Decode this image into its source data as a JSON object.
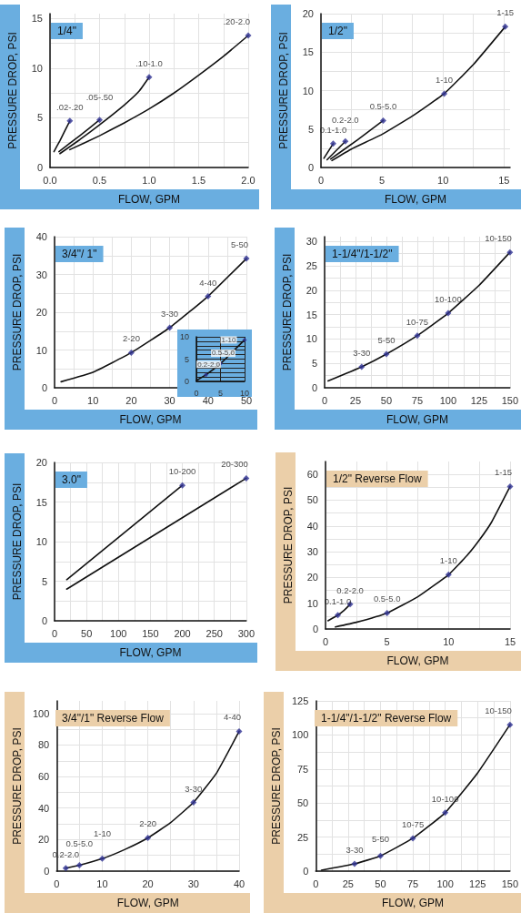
{
  "chart_data": [
    {
      "type": "line",
      "title": "1/4\"",
      "xlabel": "FLOW, GPM",
      "ylabel": "PRESSURE DROP, PSI",
      "xlim": [
        0,
        2
      ],
      "ylim": [
        0,
        15.5
      ],
      "grid": true,
      "xticks": [
        {
          "value": 0,
          "label": "0.0"
        },
        {
          "value": 0.25,
          "label": null
        },
        {
          "value": 0.5,
          "label": "0.5"
        },
        {
          "value": 0.75,
          "label": null
        },
        {
          "value": 1,
          "label": "1.0"
        },
        {
          "value": 1.25,
          "label": null
        },
        {
          "value": 1.5,
          "label": "1.5"
        },
        {
          "value": 1.75,
          "label": null
        },
        {
          "value": 2,
          "label": "2.0"
        }
      ],
      "yticks": [
        0,
        {
          "value": 2.5,
          "label": null
        },
        5,
        {
          "value": 7.5,
          "label": null
        },
        10,
        {
          "value": 12.5,
          "label": null
        },
        15
      ],
      "series": [
        {
          "type": "line",
          "color": "#111111",
          "marker": "none",
          "x": [
            0.04,
            0.1,
            0.15,
            0.2
          ],
          "values": [
            1.6,
            2.7,
            3.7,
            4.7
          ]
        },
        {
          "type": "line",
          "color": "#111111",
          "marker": "none",
          "x": [
            0.09,
            0.3,
            0.5
          ],
          "values": [
            1.6,
            3.2,
            4.8
          ]
        },
        {
          "type": "line",
          "color": "#111111",
          "marker": "none",
          "x": [
            0.1,
            0.3,
            0.5,
            0.75,
            0.9,
            1
          ],
          "values": [
            1.4,
            2.8,
            4.3,
            6.3,
            7.7,
            9.1
          ]
        },
        {
          "type": "line",
          "color": "#111111",
          "marker": "none",
          "x": [
            0.2,
            0.5,
            0.75,
            1,
            1.25,
            1.5,
            1.75,
            2
          ],
          "values": [
            1.8,
            3.2,
            4.5,
            5.9,
            7.5,
            9.3,
            11.2,
            13.3
          ]
        },
        {
          "type": "scatter",
          "color": "#2e3192",
          "marker": "diamond",
          "x": [
            0.2,
            0.5,
            1,
            2
          ],
          "values": [
            4.7,
            4.8,
            9.1,
            13.3
          ],
          "value_labels": [
            ".02-.20",
            ".05-.50",
            ".10-1.0",
            ".20-2.0"
          ]
        }
      ]
    },
    {
      "type": "line",
      "title": "1/2\"",
      "xlabel": "FLOW, GPM",
      "ylabel": "PRESSURE DROP, PSI",
      "xlim": [
        0,
        15.5
      ],
      "ylim": [
        0,
        20
      ],
      "grid": true,
      "xticks": [
        0,
        {
          "value": 2.5,
          "label": null
        },
        5,
        {
          "value": 7.5,
          "label": null
        },
        10,
        {
          "value": 12.5,
          "label": null
        },
        15
      ],
      "yticks": [
        0,
        {
          "value": 2.5,
          "label": null
        },
        5,
        {
          "value": 7.5,
          "label": null
        },
        10,
        {
          "value": 12.5,
          "label": null
        },
        15,
        {
          "value": 17.5,
          "label": null
        },
        20
      ],
      "series": [
        {
          "type": "line",
          "color": "#111111",
          "marker": "none",
          "x": [
            0.24,
            1
          ],
          "values": [
            1.2,
            3.1
          ]
        },
        {
          "type": "line",
          "color": "#111111",
          "marker": "none",
          "x": [
            0.5,
            2
          ],
          "values": [
            1,
            3.4
          ]
        },
        {
          "type": "line",
          "color": "#111111",
          "marker": "none",
          "x": [
            0.8,
            3,
            5.1
          ],
          "values": [
            1.1,
            3.6,
            6.1
          ]
        },
        {
          "type": "line",
          "color": "#111111",
          "marker": "none",
          "x": [
            0.9,
            2.5,
            5,
            7.5,
            10.1,
            12.5,
            15.1
          ],
          "values": [
            0.9,
            2.4,
            4.3,
            6.7,
            9.6,
            13.4,
            18.3
          ]
        },
        {
          "type": "scatter",
          "color": "#2e3192",
          "marker": "diamond",
          "x": [
            1,
            2,
            5.1,
            10.1,
            15.1
          ],
          "values": [
            3.1,
            3.4,
            6.1,
            9.6,
            18.3
          ],
          "value_labels": [
            "0.1-1.0",
            "0.2-2.0",
            "0.5-5.0",
            "1-10",
            "1-15"
          ]
        }
      ]
    },
    {
      "type": "line",
      "title": "3/4\"/ 1\"",
      "xlabel": "FLOW, GPM",
      "ylabel": "PRESSURE DROP, PSI",
      "xlim": [
        0,
        50
      ],
      "ylim": [
        0,
        40
      ],
      "grid": true,
      "xticks": [
        0,
        {
          "value": 5,
          "label": null
        },
        10,
        {
          "value": 15,
          "label": null
        },
        20,
        {
          "value": 25,
          "label": null
        },
        30,
        {
          "value": 35,
          "label": null
        },
        40,
        {
          "value": 45,
          "label": null
        },
        50
      ],
      "yticks": [
        0,
        {
          "value": 5,
          "label": null
        },
        10,
        {
          "value": 15,
          "label": null
        },
        20,
        {
          "value": 25,
          "label": null
        },
        30,
        {
          "value": 35,
          "label": null
        },
        40
      ],
      "series": [
        {
          "type": "line",
          "color": "#111111",
          "marker": "none",
          "x": [
            1.7,
            10,
            20,
            30,
            40,
            50
          ],
          "values": [
            1.6,
            4.1,
            9.3,
            15.9,
            24.2,
            34.2
          ]
        },
        {
          "type": "scatter",
          "color": "#2e3192",
          "marker": "diamond",
          "x": [
            20,
            30,
            40,
            50
          ],
          "values": [
            9.3,
            15.9,
            24.2,
            34.2
          ],
          "value_labels": [
            "2-20",
            "3-30",
            "4-40",
            "5-50"
          ]
        }
      ]
    },
    {
      "type": "line",
      "xlim": [
        0,
        10
      ],
      "ylim": [
        0,
        10
      ],
      "grid": true,
      "xticks": [
        0,
        5,
        10
      ],
      "yticks": [
        0,
        {
          "value": 1,
          "label": null
        },
        {
          "value": 2,
          "label": null
        },
        {
          "value": 3,
          "label": null
        },
        {
          "value": 4,
          "label": null
        },
        5,
        {
          "value": 6,
          "label": null
        },
        {
          "value": 7,
          "label": null
        },
        {
          "value": 8,
          "label": null
        },
        {
          "value": 9,
          "label": null
        },
        10
      ],
      "series": [
        {
          "type": "line",
          "color": "#111111",
          "marker": "none",
          "x": [
            0,
            2,
            5,
            10
          ],
          "values": [
            0.2,
            1.5,
            4,
            9.3
          ]
        },
        {
          "type": "scatter",
          "color": "#2e3192",
          "marker": "diamond",
          "x": [
            2,
            5,
            10
          ],
          "values": [
            1.5,
            4,
            9.3
          ],
          "value_labels": [
            "0.2-2.0",
            "0.5-5.0",
            "1-10"
          ]
        }
      ]
    },
    {
      "type": "line",
      "title": "1-1/4\"/1-1/2\"",
      "xlabel": "FLOW, GPM",
      "ylabel": "PRESSURE DROP, PSI",
      "xlim": [
        0,
        150
      ],
      "ylim": [
        0,
        31
      ],
      "grid": true,
      "xticks": [
        0,
        {
          "value": 12.5,
          "label": null
        },
        25,
        {
          "value": 37.5,
          "label": null
        },
        50,
        {
          "value": 62.5,
          "label": null
        },
        75,
        {
          "value": 87.5,
          "label": null
        },
        100,
        {
          "value": 112.5,
          "label": null
        },
        125,
        {
          "value": 137.5,
          "label": null
        },
        150
      ],
      "yticks": [
        0,
        {
          "value": 2.5,
          "label": null
        },
        5,
        {
          "value": 7.5,
          "label": null
        },
        10,
        {
          "value": 12.5,
          "label": null
        },
        15,
        {
          "value": 17.5,
          "label": null
        },
        20,
        {
          "value": 22.5,
          "label": null
        },
        25,
        {
          "value": 27.5,
          "label": null
        },
        30
      ],
      "series": [
        {
          "type": "line",
          "color": "#111111",
          "marker": "none",
          "x": [
            2.8,
            30,
            50,
            75,
            100,
            125,
            150
          ],
          "values": [
            1.4,
            4.3,
            6.9,
            10.7,
            15.3,
            21,
            27.8
          ]
        },
        {
          "type": "scatter",
          "color": "#2e3192",
          "marker": "diamond",
          "x": [
            30,
            50,
            75,
            100,
            150
          ],
          "values": [
            4.3,
            6.9,
            10.7,
            15.3,
            27.8
          ],
          "value_labels": [
            "3-30",
            "5-50",
            "10-75",
            "10-100",
            "10-150"
          ]
        }
      ]
    },
    {
      "type": "line",
      "title": "3.0\"",
      "xlabel": "FLOW, GPM",
      "ylabel": "PRESSURE DROP, PSI",
      "xlim": [
        0,
        300
      ],
      "ylim": [
        0,
        20
      ],
      "grid": true,
      "xticks": [
        0,
        {
          "value": 25,
          "label": null
        },
        50,
        {
          "value": 75,
          "label": null
        },
        100,
        {
          "value": 125,
          "label": null
        },
        150,
        {
          "value": 175,
          "label": null
        },
        200,
        {
          "value": 225,
          "label": null
        },
        250,
        {
          "value": 275,
          "label": null
        },
        300
      ],
      "yticks": [
        0,
        {
          "value": 2.5,
          "label": null
        },
        5,
        {
          "value": 7.5,
          "label": null
        },
        10,
        {
          "value": 12.5,
          "label": null
        },
        15,
        {
          "value": 17.5,
          "label": null
        },
        20
      ],
      "series": [
        {
          "type": "line",
          "color": "#111111",
          "marker": "none",
          "x": [
            19,
            200
          ],
          "values": [
            5.2,
            17.1
          ]
        },
        {
          "type": "line",
          "color": "#111111",
          "marker": "none",
          "x": [
            19,
            300
          ],
          "values": [
            4,
            18
          ]
        },
        {
          "type": "scatter",
          "color": "#2e3192",
          "marker": "diamond",
          "x": [
            200,
            300
          ],
          "values": [
            17.1,
            18
          ],
          "value_labels": [
            "10-200",
            "20-300"
          ]
        }
      ]
    },
    {
      "type": "line",
      "title": "1/2\" Reverse Flow",
      "xlabel": "FLOW, GPM",
      "ylabel": "PRESSURE DROP, PSI",
      "xlim": [
        0,
        15
      ],
      "ylim": [
        0,
        65
      ],
      "grid": true,
      "xticks": [
        0,
        {
          "value": 2.5,
          "label": null
        },
        5,
        {
          "value": 7.5,
          "label": null
        },
        10,
        {
          "value": 12.5,
          "label": null
        },
        15
      ],
      "yticks": [
        0,
        {
          "value": 5,
          "label": null
        },
        10,
        {
          "value": 15,
          "label": null
        },
        20,
        {
          "value": 25,
          "label": null
        },
        30,
        {
          "value": 35,
          "label": null
        },
        40,
        {
          "value": 45,
          "label": null
        },
        50,
        {
          "value": 55,
          "label": null
        },
        60
      ],
      "series": [
        {
          "type": "line",
          "color": "#111111",
          "marker": "none",
          "x": [
            0.2,
            1,
            1.5,
            2
          ],
          "values": [
            3.2,
            5.4,
            7.2,
            9.6
          ]
        },
        {
          "type": "line",
          "color": "#111111",
          "marker": "none",
          "x": [
            0.8,
            2.5,
            5,
            7.5,
            10,
            11.5,
            12.5,
            13.5,
            15
          ],
          "values": [
            0.8,
            2.6,
            6.2,
            12.5,
            21.1,
            28.5,
            34.5,
            41.5,
            55.3
          ]
        },
        {
          "type": "scatter",
          "color": "#2e3192",
          "marker": "diamond",
          "x": [
            2,
            1,
            5,
            10,
            15
          ],
          "values": [
            9.6,
            5.4,
            6.2,
            21.1,
            55.3
          ],
          "value_labels": [
            "0.2-2.0",
            "0.1-1.0",
            "0.5-5.0",
            "1-10",
            "1-15"
          ]
        }
      ]
    },
    {
      "type": "line",
      "title": "3/4\"/1\" Reverse Flow",
      "xlabel": "FLOW, GPM",
      "ylabel": "PRESSURE DROP, PSI",
      "xlim": [
        0,
        40
      ],
      "ylim": [
        0,
        108
      ],
      "grid": true,
      "xticks": [
        0,
        {
          "value": 5,
          "label": null
        },
        10,
        {
          "value": 15,
          "label": null
        },
        20,
        {
          "value": 25,
          "label": null
        },
        30,
        {
          "value": 35,
          "label": null
        },
        40
      ],
      "yticks": [
        0,
        {
          "value": 10,
          "label": null
        },
        20,
        {
          "value": 30,
          "label": null
        },
        40,
        {
          "value": 50,
          "label": null
        },
        60,
        {
          "value": 70,
          "label": null
        },
        80,
        {
          "value": 90,
          "label": null
        },
        100
      ],
      "series": [
        {
          "type": "line",
          "color": "#111111",
          "marker": "none",
          "x": [
            2,
            5,
            10,
            15,
            20,
            25,
            30,
            35,
            40
          ],
          "values": [
            1.9,
            3.8,
            7.9,
            13.8,
            21.1,
            30.8,
            43.6,
            62,
            88.7
          ]
        },
        {
          "type": "scatter",
          "color": "#2e3192",
          "marker": "diamond",
          "x": [
            2,
            5,
            10,
            20,
            30,
            40
          ],
          "values": [
            1.9,
            3.8,
            7.9,
            21.1,
            43.6,
            88.7
          ],
          "value_labels": [
            "0.2-2.0",
            "0.5-5.0",
            "1-10",
            "2-20",
            "3-30",
            "4-40"
          ]
        }
      ]
    },
    {
      "type": "line",
      "title": "1-1/4\"/1-1/2\" Reverse Flow",
      "xlabel": "FLOW, GPM",
      "ylabel": "PRESSURE DROP, PSI",
      "xlim": [
        0,
        150
      ],
      "ylim": [
        0,
        125
      ],
      "grid": true,
      "xticks": [
        0,
        {
          "value": 12.5,
          "label": null
        },
        25,
        {
          "value": 37.5,
          "label": null
        },
        50,
        {
          "value": 62.5,
          "label": null
        },
        75,
        {
          "value": 87.5,
          "label": null
        },
        100,
        {
          "value": 112.5,
          "label": null
        },
        125,
        {
          "value": 137.5,
          "label": null
        },
        150
      ],
      "yticks": [
        0,
        {
          "value": 12.5,
          "label": null
        },
        25,
        {
          "value": 37.5,
          "label": null
        },
        50,
        {
          "value": 62.5,
          "label": null
        },
        75,
        {
          "value": 87.5,
          "label": null
        },
        100,
        {
          "value": 112.5,
          "label": null
        },
        125
      ],
      "series": [
        {
          "type": "line",
          "color": "#111111",
          "marker": "none",
          "x": [
            4.4,
            30,
            50,
            75,
            100,
            125,
            150
          ],
          "values": [
            0.7,
            5.3,
            11.2,
            24.1,
            42.9,
            72,
            107.5
          ]
        },
        {
          "type": "scatter",
          "color": "#2e3192",
          "marker": "diamond",
          "x": [
            30,
            50,
            75,
            100,
            150
          ],
          "values": [
            5.3,
            11.2,
            24.1,
            42.9,
            107.5
          ],
          "value_labels": [
            "3-30",
            "5-50",
            "10-75",
            "10-100",
            "10-150"
          ]
        }
      ]
    }
  ]
}
